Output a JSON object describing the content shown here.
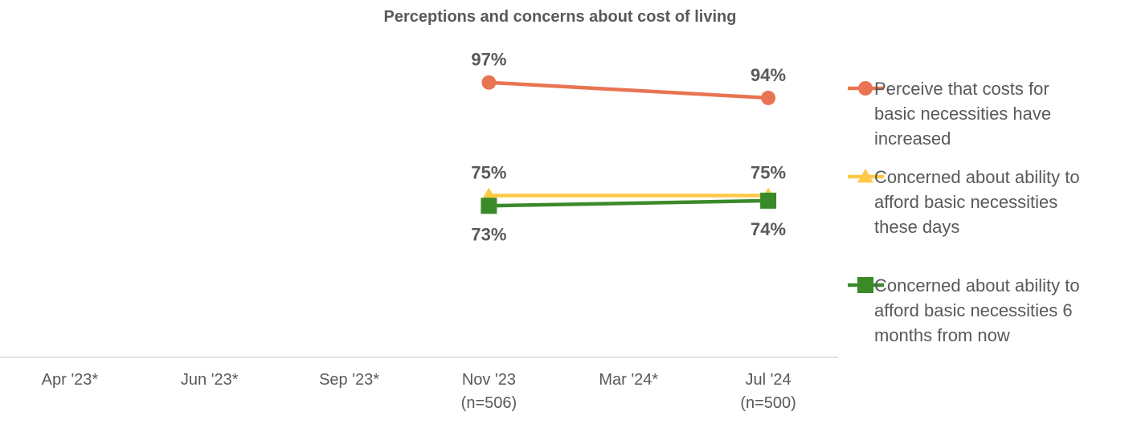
{
  "chart_data": {
    "type": "line",
    "title": "Perceptions and concerns about cost of living",
    "xlabel": "",
    "ylabel": "",
    "categories": [
      [
        "Apr '23*"
      ],
      [
        "Jun '23*"
      ],
      [
        "Sep '23*"
      ],
      [
        "Nov '23",
        "(n=506)"
      ],
      [
        "Mar '24*"
      ],
      [
        "Jul '24",
        "(n=500)"
      ]
    ],
    "ylim": [
      0,
      100
    ],
    "y_axis_visible": false,
    "grid": false,
    "legend_position": "right",
    "series": [
      {
        "name": "Perceive that costs for basic necessities have increased",
        "legend_lines": [
          "Perceive that costs for",
          "basic necessities have",
          "increased"
        ],
        "values": [
          null,
          null,
          null,
          97,
          null,
          94
        ],
        "labels": [
          null,
          null,
          null,
          "97%",
          null,
          "94%"
        ],
        "color": "#E97451",
        "marker": "circle",
        "label_position": "above"
      },
      {
        "name": "Concerned about ability to afford basic necessities these days",
        "legend_lines": [
          "Concerned about ability to",
          "afford basic necessities",
          "these days"
        ],
        "values": [
          null,
          null,
          null,
          75,
          null,
          75
        ],
        "labels": [
          null,
          null,
          null,
          "75%",
          null,
          "75%"
        ],
        "color": "#FFC845",
        "marker": "triangle",
        "label_position": "above"
      },
      {
        "name": "Concerned about ability to afford basic necessities 6 months from now",
        "legend_lines": [
          "Concerned about ability to",
          "afford basic necessities 6",
          "months from now"
        ],
        "values": [
          null,
          null,
          null,
          73,
          null,
          74
        ],
        "labels": [
          null,
          null,
          null,
          "73%",
          null,
          "74%"
        ],
        "color": "#3A8A2A",
        "marker": "square",
        "label_position": "below"
      }
    ]
  },
  "colors": {
    "text": "#595959",
    "axis": "#D9D9D9"
  }
}
